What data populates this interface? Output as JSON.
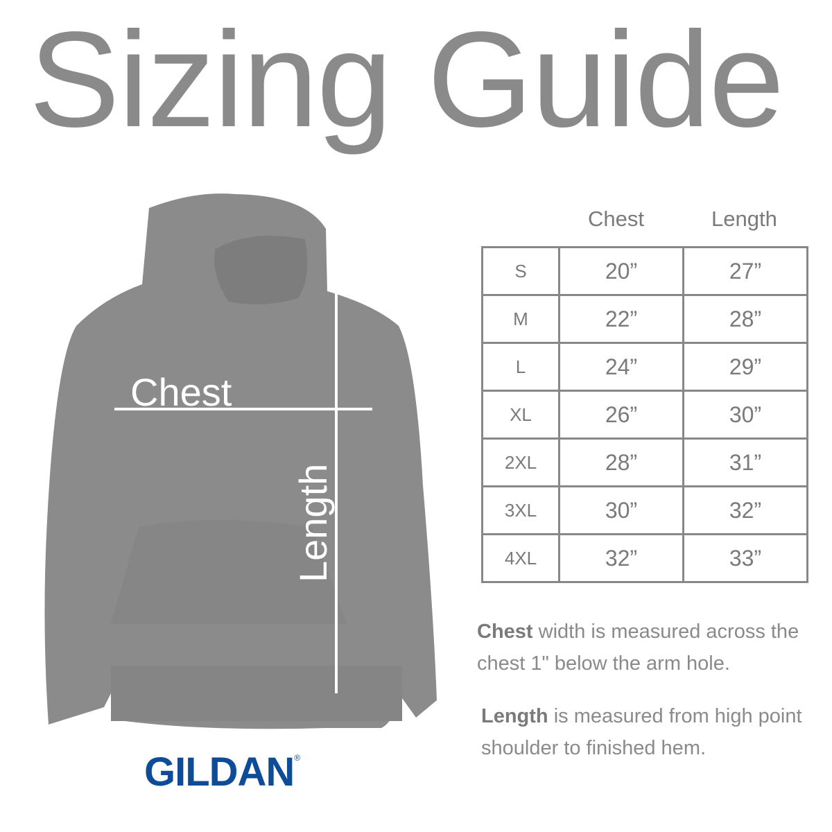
{
  "title": "Sizing Guide",
  "diagram": {
    "chest_label": "Chest",
    "length_label": "Length",
    "garment_color": "#8b8b8b"
  },
  "brand": {
    "name": "GILDAN",
    "mark": "®",
    "color": "#0f4c97"
  },
  "table": {
    "headers": [
      "Chest",
      "Length"
    ],
    "rows": [
      {
        "size": "S",
        "chest": "20”",
        "length": "27”"
      },
      {
        "size": "M",
        "chest": "22”",
        "length": "28”"
      },
      {
        "size": "L",
        "chest": "24”",
        "length": "29”"
      },
      {
        "size": "XL",
        "chest": "26”",
        "length": "30”"
      },
      {
        "size": "2XL",
        "chest": "28”",
        "length": "31”"
      },
      {
        "size": "3XL",
        "chest": "30”",
        "length": "32”"
      },
      {
        "size": "4XL",
        "chest": "32”",
        "length": "33”"
      }
    ]
  },
  "notes": {
    "chest_term": "Chest",
    "chest_text": " width is measured across the chest 1\" below the arm hole.",
    "length_term": "Length",
    "length_text": " is measured from high point shoulder to finished hem."
  }
}
